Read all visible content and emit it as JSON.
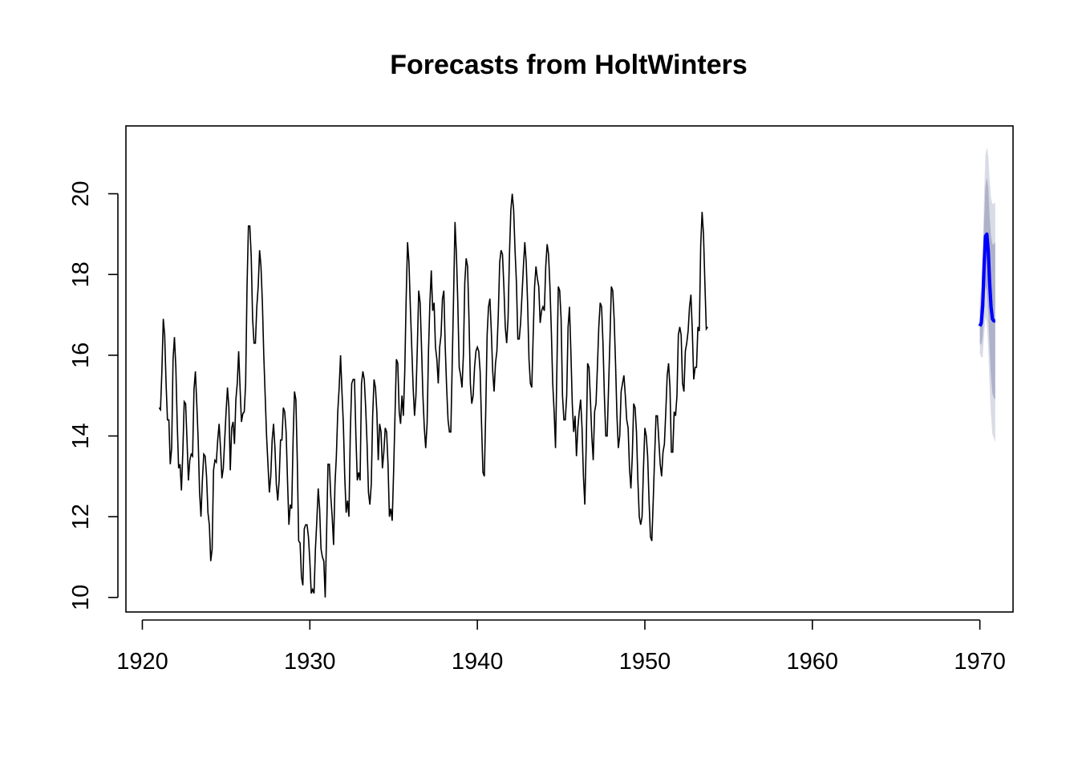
{
  "chart_data": {
    "type": "line",
    "title": "Forecasts from HoltWinters",
    "xlabel": "",
    "ylabel": "",
    "xlim": [
      1919.02,
      1971.98
    ],
    "ylim": [
      9.64,
      21.68
    ],
    "x_ticks": [
      1920,
      1930,
      1940,
      1950,
      1960,
      1970
    ],
    "x_tick_labels": [
      "1920",
      "1930",
      "1940",
      "1950",
      "1960",
      "1970"
    ],
    "y_ticks": [
      10,
      12,
      14,
      16,
      18,
      20
    ],
    "y_tick_labels": [
      "10",
      "12",
      "14",
      "16",
      "18",
      "20"
    ],
    "grid": false,
    "colors": {
      "observed": "#000000",
      "forecast": "#0000ff",
      "band80": "#aeb2c9",
      "band95": "#d9dbe5"
    },
    "series": [
      {
        "role": "observed",
        "start": 1921.0,
        "frequency": 12,
        "values": [
          14.7,
          14.65,
          15.6,
          16.9,
          16.5,
          15.3,
          14.4,
          14.4,
          13.3,
          13.7,
          15.9,
          16.45,
          15.7,
          14.3,
          13.2,
          13.3,
          12.65,
          13.6,
          14.85,
          14.8,
          13.9,
          12.9,
          13.4,
          13.55,
          13.5,
          15.15,
          15.6,
          14.8,
          13.9,
          12.6,
          12.0,
          12.9,
          13.55,
          13.5,
          13.0,
          12.1,
          11.8,
          10.9,
          11.2,
          13.15,
          13.4,
          13.35,
          13.9,
          14.3,
          13.7,
          12.95,
          13.2,
          13.9,
          14.6,
          15.2,
          14.7,
          13.15,
          14.2,
          14.35,
          13.8,
          14.9,
          15.3,
          16.1,
          15.2,
          14.35,
          14.55,
          14.6,
          15.3,
          17.7,
          19.2,
          19.2,
          18.45,
          16.9,
          16.3,
          16.3,
          17.2,
          17.7,
          18.6,
          18.2,
          17.3,
          16.0,
          15.0,
          14.0,
          13.3,
          12.6,
          13.0,
          13.9,
          14.3,
          13.7,
          12.8,
          12.4,
          12.9,
          13.9,
          13.9,
          14.7,
          14.6,
          14.1,
          12.9,
          11.8,
          12.3,
          12.2,
          13.9,
          15.1,
          14.9,
          13.4,
          11.4,
          11.35,
          10.5,
          10.3,
          11.7,
          11.8,
          11.8,
          11.5,
          10.9,
          10.1,
          10.2,
          10.1,
          11.2,
          11.9,
          12.7,
          12.2,
          11.2,
          11.0,
          10.9,
          10.0,
          11.6,
          13.3,
          13.3,
          12.5,
          12.0,
          11.3,
          12.8,
          13.5,
          14.6,
          15.2,
          16.0,
          15.1,
          14.3,
          13.0,
          12.1,
          12.4,
          12.0,
          14.1,
          15.3,
          15.4,
          15.4,
          14.0,
          12.9,
          13.1,
          12.9,
          15.3,
          15.6,
          15.4,
          14.7,
          13.8,
          12.6,
          12.3,
          12.8,
          14.5,
          15.4,
          15.2,
          14.6,
          13.4,
          14.3,
          14.1,
          13.2,
          13.6,
          14.2,
          14.1,
          13.3,
          12.0,
          12.2,
          11.9,
          13.1,
          14.5,
          15.9,
          15.8,
          14.6,
          14.3,
          15.0,
          14.5,
          15.6,
          17.4,
          18.8,
          18.3,
          17.2,
          16.2,
          15.2,
          14.5,
          15.0,
          16.2,
          17.6,
          17.3,
          16.2,
          15.0,
          14.2,
          13.7,
          14.3,
          16.1,
          17.3,
          18.1,
          17.1,
          17.3,
          16.2,
          15.9,
          15.3,
          16.2,
          16.5,
          17.4,
          17.6,
          16.2,
          15.2,
          14.4,
          14.1,
          14.1,
          15.8,
          17.5,
          19.3,
          18.5,
          17.3,
          15.7,
          15.5,
          15.2,
          16.0,
          17.8,
          18.4,
          18.2,
          16.9,
          15.3,
          14.8,
          15.0,
          15.7,
          16.1,
          16.2,
          16.1,
          15.6,
          14.3,
          13.1,
          13.0,
          14.6,
          16.5,
          17.2,
          17.4,
          16.6,
          15.6,
          15.1,
          15.8,
          16.1,
          17.0,
          18.3,
          18.6,
          18.5,
          17.7,
          16.7,
          16.3,
          16.9,
          18.5,
          19.6,
          20.0,
          19.6,
          18.6,
          17.8,
          16.4,
          16.4,
          16.8,
          17.5,
          18.2,
          18.8,
          18.3,
          17.3,
          15.9,
          15.3,
          15.2,
          16.5,
          17.7,
          18.2,
          17.9,
          17.7,
          16.8,
          17.1,
          17.2,
          17.1,
          18.2,
          18.75,
          18.5,
          17.7,
          16.6,
          15.3,
          14.6,
          13.7,
          15.7,
          17.7,
          17.6,
          16.9,
          15.0,
          14.4,
          14.4,
          15.0,
          16.7,
          17.2,
          16.1,
          14.8,
          14.1,
          14.5,
          13.5,
          14.2,
          14.6,
          14.9,
          14.2,
          13.0,
          12.3,
          13.8,
          15.8,
          15.7,
          14.9,
          14.0,
          13.4,
          14.6,
          14.8,
          15.7,
          16.7,
          17.3,
          17.2,
          16.3,
          15.0,
          14.0,
          14.0,
          15.2,
          16.4,
          17.7,
          17.6,
          16.9,
          15.8,
          14.5,
          13.7,
          14.0,
          15.1,
          15.3,
          15.5,
          15.0,
          14.4,
          14.2,
          13.2,
          12.7,
          13.5,
          14.8,
          14.7,
          14.1,
          12.9,
          12.0,
          11.8,
          12.0,
          13.2,
          14.2,
          14.0,
          13.5,
          12.4,
          11.5,
          11.4,
          12.4,
          13.5,
          14.5,
          14.5,
          13.9,
          13.3,
          13.0,
          13.6,
          13.8,
          14.6,
          15.5,
          15.8,
          15.2,
          13.6,
          13.6,
          14.6,
          14.5,
          15.0,
          16.5,
          16.7,
          16.5,
          15.3,
          15.1,
          16.1,
          16.3,
          16.6,
          17.2,
          17.5,
          16.6,
          15.4,
          15.7,
          15.7,
          16.7,
          16.6,
          18.7,
          19.55,
          19.0,
          17.8,
          16.65,
          16.7
        ]
      },
      {
        "role": "forecast",
        "start": 1970.0,
        "frequency": 12,
        "values": [
          16.72,
          16.8,
          17.2,
          18.2,
          18.95,
          19.0,
          18.6,
          17.8,
          17.2,
          16.9,
          16.85,
          16.85
        ],
        "lo80": [
          16.3,
          16.25,
          16.45,
          17.1,
          17.7,
          17.6,
          17.05,
          16.15,
          15.45,
          15.05,
          14.95,
          14.9
        ],
        "hi80": [
          17.15,
          17.35,
          17.95,
          19.3,
          20.2,
          20.4,
          20.15,
          19.45,
          18.95,
          18.75,
          18.75,
          18.8
        ],
        "lo95": [
          16.05,
          15.95,
          15.95,
          16.5,
          16.95,
          16.8,
          16.2,
          15.25,
          14.5,
          14.05,
          13.95,
          13.85
        ],
        "hi95": [
          17.4,
          17.65,
          18.45,
          19.9,
          20.95,
          21.15,
          20.95,
          20.35,
          19.9,
          19.75,
          19.75,
          19.8
        ]
      }
    ]
  }
}
